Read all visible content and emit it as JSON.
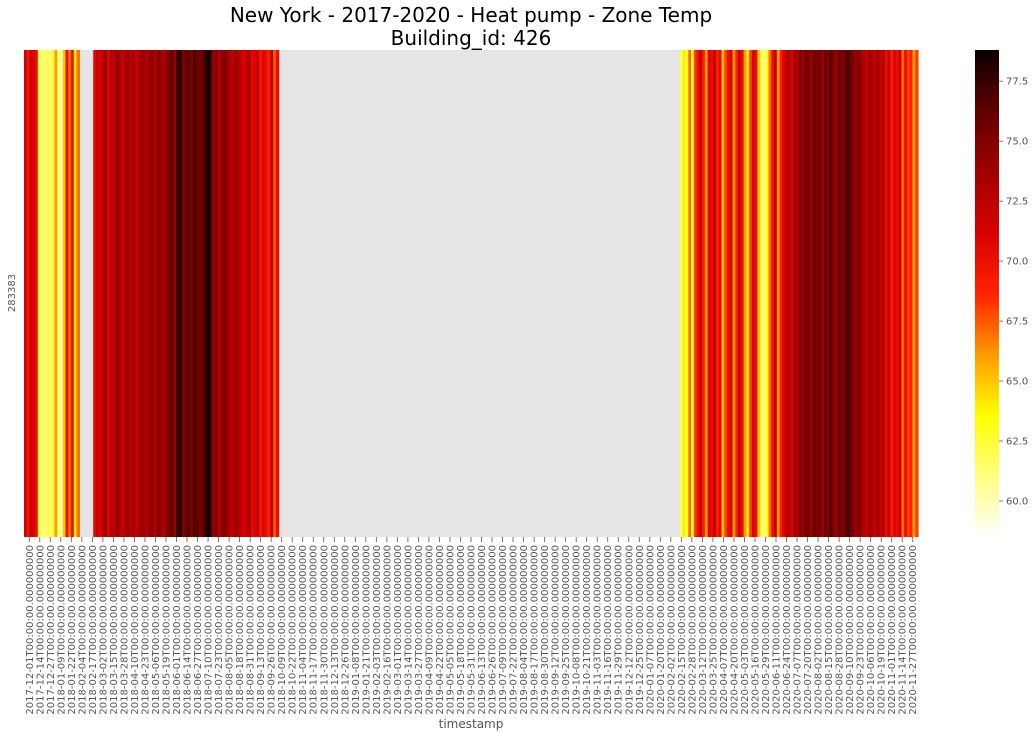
{
  "chart_data": {
    "type": "heatmap",
    "title": "New York - 2017-2020 - Heat pump - Zone Temp",
    "subtitle": "Building_id: 426",
    "xlabel": "timestamp",
    "ylabel": "",
    "y_categories": [
      "283383"
    ],
    "colormap": "hot_r",
    "missing_color": "#e5e5e5",
    "colorbar": {
      "vmin": 58.5,
      "vmax": 78.8,
      "ticks": [
        60.0,
        62.5,
        65.0,
        67.5,
        70.0,
        72.5,
        75.0,
        77.5
      ],
      "tick_labels": [
        "60.0",
        "62.5",
        "65.0",
        "67.5",
        "70.0",
        "72.5",
        "75.0",
        "77.5"
      ]
    },
    "x_tick_labels": [
      "2017-12-01T00:00:00.000000000",
      "2017-12-14T00:00:00.000000000",
      "2017-12-27T00:00:00.000000000",
      "2018-01-09T00:00:00.000000000",
      "2018-01-22T00:00:00.000000000",
      "2018-02-04T00:00:00.000000000",
      "2018-02-17T00:00:00.000000000",
      "2018-03-02T00:00:00.000000000",
      "2018-03-15T00:00:00.000000000",
      "2018-03-28T00:00:00.000000000",
      "2018-04-10T00:00:00.000000000",
      "2018-04-23T00:00:00.000000000",
      "2018-05-06T00:00:00.000000000",
      "2018-05-19T00:00:00.000000000",
      "2018-06-01T00:00:00.000000000",
      "2018-06-14T00:00:00.000000000",
      "2018-06-27T00:00:00.000000000",
      "2018-07-10T00:00:00.000000000",
      "2018-07-23T00:00:00.000000000",
      "2018-08-05T00:00:00.000000000",
      "2018-08-18T00:00:00.000000000",
      "2018-08-31T00:00:00.000000000",
      "2018-09-13T00:00:00.000000000",
      "2018-09-26T00:00:00.000000000",
      "2018-10-09T00:00:00.000000000",
      "2018-10-22T00:00:00.000000000",
      "2018-11-04T00:00:00.000000000",
      "2018-11-17T00:00:00.000000000",
      "2018-11-30T00:00:00.000000000",
      "2018-12-13T00:00:00.000000000",
      "2018-12-26T00:00:00.000000000",
      "2019-01-08T00:00:00.000000000",
      "2019-01-21T00:00:00.000000000",
      "2019-02-03T00:00:00.000000000",
      "2019-02-16T00:00:00.000000000",
      "2019-03-01T00:00:00.000000000",
      "2019-03-14T00:00:00.000000000",
      "2019-03-27T00:00:00.000000000",
      "2019-04-09T00:00:00.000000000",
      "2019-04-22T00:00:00.000000000",
      "2019-05-05T00:00:00.000000000",
      "2019-05-18T00:00:00.000000000",
      "2019-05-31T00:00:00.000000000",
      "2019-06-13T00:00:00.000000000",
      "2019-06-26T00:00:00.000000000",
      "2019-07-09T00:00:00.000000000",
      "2019-07-22T00:00:00.000000000",
      "2019-08-04T00:00:00.000000000",
      "2019-08-17T00:00:00.000000000",
      "2019-08-30T00:00:00.000000000",
      "2019-09-12T00:00:00.000000000",
      "2019-09-25T00:00:00.000000000",
      "2019-10-08T00:00:00.000000000",
      "2019-10-21T00:00:00.000000000",
      "2019-11-03T00:00:00.000000000",
      "2019-11-16T00:00:00.000000000",
      "2019-11-29T00:00:00.000000000",
      "2019-12-12T00:00:00.000000000",
      "2019-12-25T00:00:00.000000000",
      "2020-01-07T00:00:00.000000000",
      "2020-01-20T00:00:00.000000000",
      "2020-02-02T00:00:00.000000000",
      "2020-02-15T00:00:00.000000000",
      "2020-02-28T00:00:00.000000000",
      "2020-03-12T00:00:00.000000000",
      "2020-03-25T00:00:00.000000000",
      "2020-04-07T00:00:00.000000000",
      "2020-04-20T00:00:00.000000000",
      "2020-05-03T00:00:00.000000000",
      "2020-05-16T00:00:00.000000000",
      "2020-05-29T00:00:00.000000000",
      "2020-06-11T00:00:00.000000000",
      "2020-06-24T00:00:00.000000000",
      "2020-07-07T00:00:00.000000000",
      "2020-07-20T00:00:00.000000000",
      "2020-08-02T00:00:00.000000000",
      "2020-08-15T00:00:00.000000000",
      "2020-08-28T00:00:00.000000000",
      "2020-09-10T00:00:00.000000000",
      "2020-09-23T00:00:00.000000000",
      "2020-10-06T00:00:00.000000000",
      "2020-10-19T00:00:00.000000000",
      "2020-11-01T00:00:00.000000000",
      "2020-11-14T00:00:00.000000000",
      "2020-11-27T00:00:00.000000000"
    ],
    "values": [
      71.5,
      69.5,
      72,
      71,
      70,
      62.5,
      61,
      61.5,
      62,
      61.5,
      62.5,
      66,
      61,
      60.5,
      65,
      70,
      67,
      70,
      64,
      67,
      null,
      null,
      null,
      null,
      null,
      70.5,
      72,
      71,
      72.5,
      74,
      71,
      73,
      72,
      74,
      73.5,
      72,
      73,
      74,
      72.5,
      73.5,
      72,
      73,
      74,
      73.5,
      73,
      74.5,
      74,
      73,
      75,
      74,
      73,
      74.5,
      75,
      76.5,
      74,
      77.5,
      78.5,
      75,
      76,
      76.5,
      75,
      77,
      76,
      75.5,
      76,
      77.5,
      78.8,
      77.5,
      74,
      75,
      73,
      74.5,
      75,
      74,
      73,
      72.5,
      74,
      73,
      72,
      71,
      72.5,
      73,
      70.5,
      71,
      72,
      69.5,
      71,
      70,
      69,
      72.5,
      67.5,
      70,
      null,
      null,
      null,
      null,
      null,
      null,
      null,
      null,
      null,
      null,
      null,
      null,
      null,
      null,
      null,
      null,
      null,
      null,
      null,
      null,
      null,
      null,
      null,
      null,
      null,
      null,
      null,
      null,
      null,
      null,
      null,
      null,
      null,
      null,
      null,
      null,
      null,
      null,
      null,
      null,
      null,
      null,
      null,
      null,
      null,
      null,
      null,
      null,
      null,
      null,
      null,
      null,
      null,
      null,
      null,
      null,
      null,
      null,
      null,
      null,
      null,
      null,
      null,
      null,
      null,
      null,
      null,
      null,
      null,
      null,
      null,
      null,
      null,
      null,
      null,
      null,
      null,
      null,
      null,
      null,
      null,
      null,
      null,
      null,
      null,
      null,
      null,
      null,
      null,
      null,
      null,
      null,
      null,
      null,
      null,
      null,
      null,
      null,
      null,
      null,
      null,
      null,
      null,
      null,
      null,
      null,
      null,
      null,
      null,
      null,
      null,
      null,
      null,
      null,
      null,
      null,
      null,
      null,
      null,
      null,
      null,
      null,
      null,
      null,
      null,
      null,
      null,
      null,
      null,
      null,
      null,
      null,
      null,
      null,
      null,
      null,
      null,
      null,
      null,
      null,
      null,
      null,
      null,
      null,
      null,
      62,
      64,
      62.5,
      67,
      63,
      68,
      70,
      72,
      69,
      66,
      71,
      70,
      72,
      69,
      70.5,
      65,
      68,
      70,
      71,
      66,
      69,
      72,
      70,
      66,
      64,
      68,
      71,
      70,
      65,
      62,
      61,
      63,
      67,
      70,
      72,
      66,
      69,
      71,
      72.5,
      73,
      71,
      74,
      73,
      75,
      74,
      76,
      75,
      74,
      76,
      75,
      75.5,
      74,
      76,
      75,
      76.5,
      75,
      74,
      76,
      75,
      75.5,
      77,
      76,
      75,
      74,
      75,
      74,
      73,
      72,
      74,
      73,
      72,
      74,
      71.5,
      73,
      70,
      72,
      69,
      71,
      70,
      72,
      67,
      70,
      68,
      69,
      66,
      68
    ]
  }
}
